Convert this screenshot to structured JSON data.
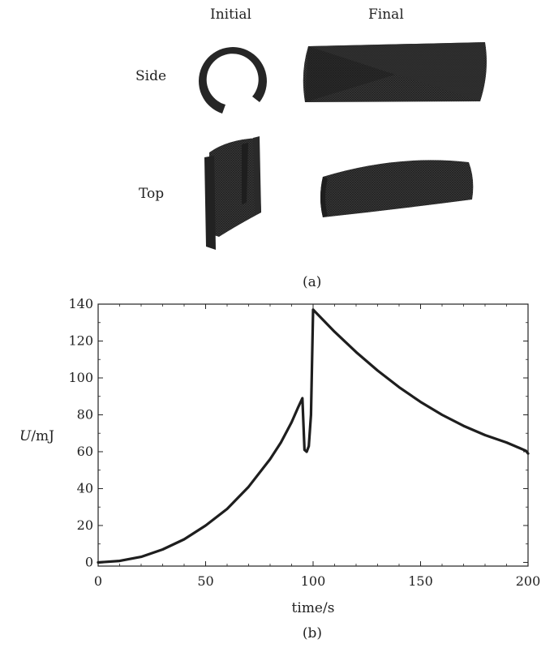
{
  "panel_a": {
    "col_initial": "Initial",
    "col_final": "Final",
    "row_side": "Side",
    "row_top": "Top",
    "caption": "(a)"
  },
  "panel_b": {
    "caption": "(b)"
  },
  "colors": {
    "shape": "#2a2a2a",
    "curve": "#1e1e1e",
    "axis": "#222222"
  },
  "chart_data": {
    "type": "line",
    "xlabel": "time/s",
    "ylabel_var": "U",
    "ylabel_unit": "/mJ",
    "xlim": [
      0,
      200
    ],
    "ylim": [
      -2,
      140
    ],
    "xticks": [
      0,
      50,
      100,
      150,
      200
    ],
    "yticks": [
      0,
      20,
      40,
      60,
      80,
      100,
      120,
      140
    ],
    "grid": false,
    "series": [
      {
        "x": [
          0,
          10,
          20,
          30,
          40,
          50,
          60,
          70,
          80,
          85,
          90,
          93,
          95,
          96,
          97,
          98,
          99,
          100,
          105,
          110,
          120,
          130,
          140,
          150,
          160,
          170,
          180,
          190,
          196,
          199,
          200
        ],
        "y": [
          0,
          0.8,
          3,
          7,
          12.5,
          20,
          29,
          41,
          56,
          65,
          76,
          84,
          89,
          61,
          60,
          63,
          80,
          137,
          131,
          125,
          114,
          104,
          95,
          87,
          80,
          74,
          69,
          65,
          62,
          60.5,
          59
        ]
      }
    ]
  }
}
